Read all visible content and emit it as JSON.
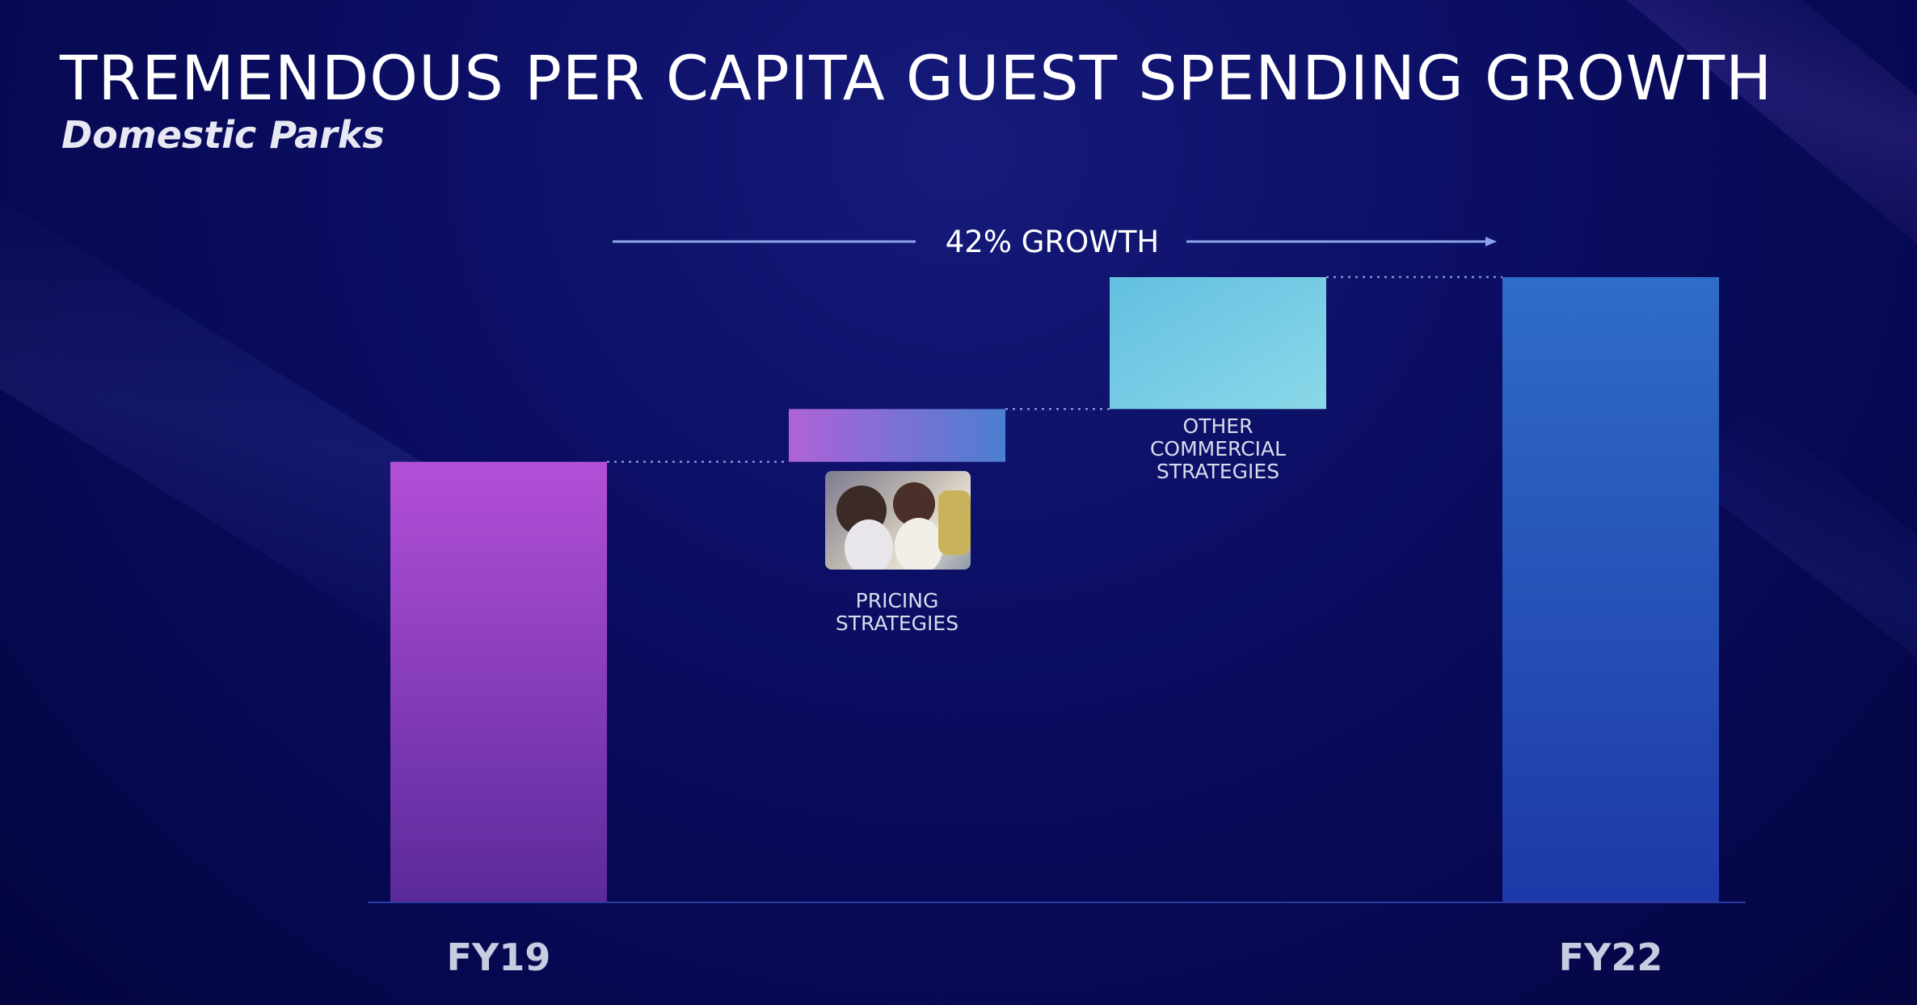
{
  "slide": {
    "title": "TREMENDOUS PER CAPITA GUEST SPENDING GROWTH",
    "subtitle": "Domestic Parks"
  },
  "chart_data": {
    "type": "bar",
    "subtype": "waterfall",
    "categories": [
      "FY19",
      "",
      "",
      "FY22"
    ],
    "values": [
      100,
      12,
      30,
      142
    ],
    "bases": [
      0,
      100,
      112,
      0
    ],
    "segment_labels": [
      "",
      "PRICING STRATEGIES",
      "OTHER COMMERCIAL STRATEGIES",
      ""
    ],
    "annotation": "42% GROWTH",
    "ylim": [
      0,
      150
    ],
    "grid": false,
    "legend": "none",
    "colors": {
      "fy19_top": "#b44fd8",
      "fy19_bottom": "#5a2a9a",
      "pricing_left": "#b062d8",
      "pricing_right": "#4a7fd0",
      "other_top_left": "#62bfe0",
      "other_bottom_right": "#8ad8e8",
      "fy22_top": "#2f6cc8",
      "fy22_bottom": "#1d38a8",
      "label": "#d8dcec",
      "axis_label": "#c8cce0"
    }
  },
  "icons": {
    "photo": "pricing-strategies-photo"
  }
}
